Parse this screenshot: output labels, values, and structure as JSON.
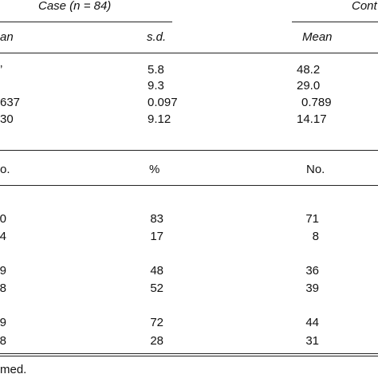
{
  "header": {
    "group_left": "Case (n = 84)",
    "group_right": "Cont"
  },
  "subheader_1": [
    "an",
    "s.d.",
    "Mean"
  ],
  "rows_1": [
    [
      "’",
      "5.8",
      "48.2"
    ],
    [
      "",
      "9.3",
      "29.0"
    ],
    [
      "637",
      "0.097",
      "0.789"
    ],
    [
      "30",
      "9.12",
      "14.17"
    ]
  ],
  "subheader_2": [
    "o.",
    "%",
    "No."
  ],
  "rows_2": [
    [
      "0",
      "83",
      "71"
    ],
    [
      "4",
      "17",
      "8"
    ],
    [
      "9",
      "48",
      "36"
    ],
    [
      "8",
      "52",
      "39"
    ],
    [
      "9",
      "72",
      "44"
    ],
    [
      "8",
      "28",
      "31"
    ]
  ],
  "footnote": "med."
}
